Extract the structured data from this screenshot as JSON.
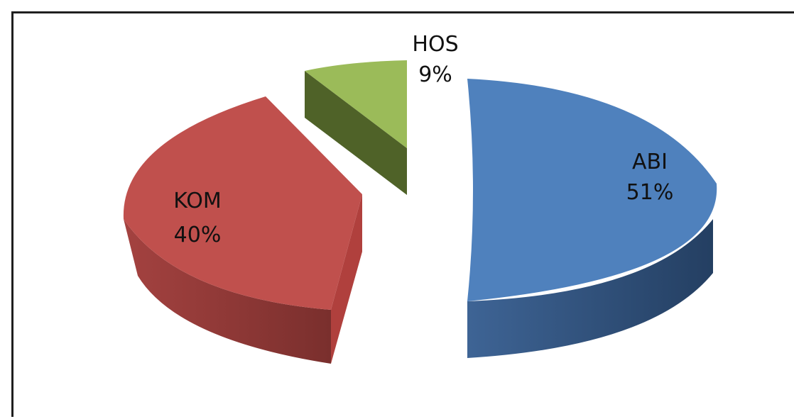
{
  "chart_data": {
    "type": "pie",
    "style": "3d-exploded",
    "slices": [
      {
        "label": "ABI",
        "percent_label": "51%",
        "value": 51,
        "color": "#4f81bd",
        "side_color": "#2c4d75"
      },
      {
        "label": "KOM",
        "percent_label": "40%",
        "value": 40,
        "color": "#c0504d",
        "side_color": "#8c3836"
      },
      {
        "label": "HOS",
        "percent_label": "9%",
        "value": 9,
        "color": "#9bbb59",
        "side_color": "#4f6228"
      }
    ],
    "legend": "none"
  }
}
